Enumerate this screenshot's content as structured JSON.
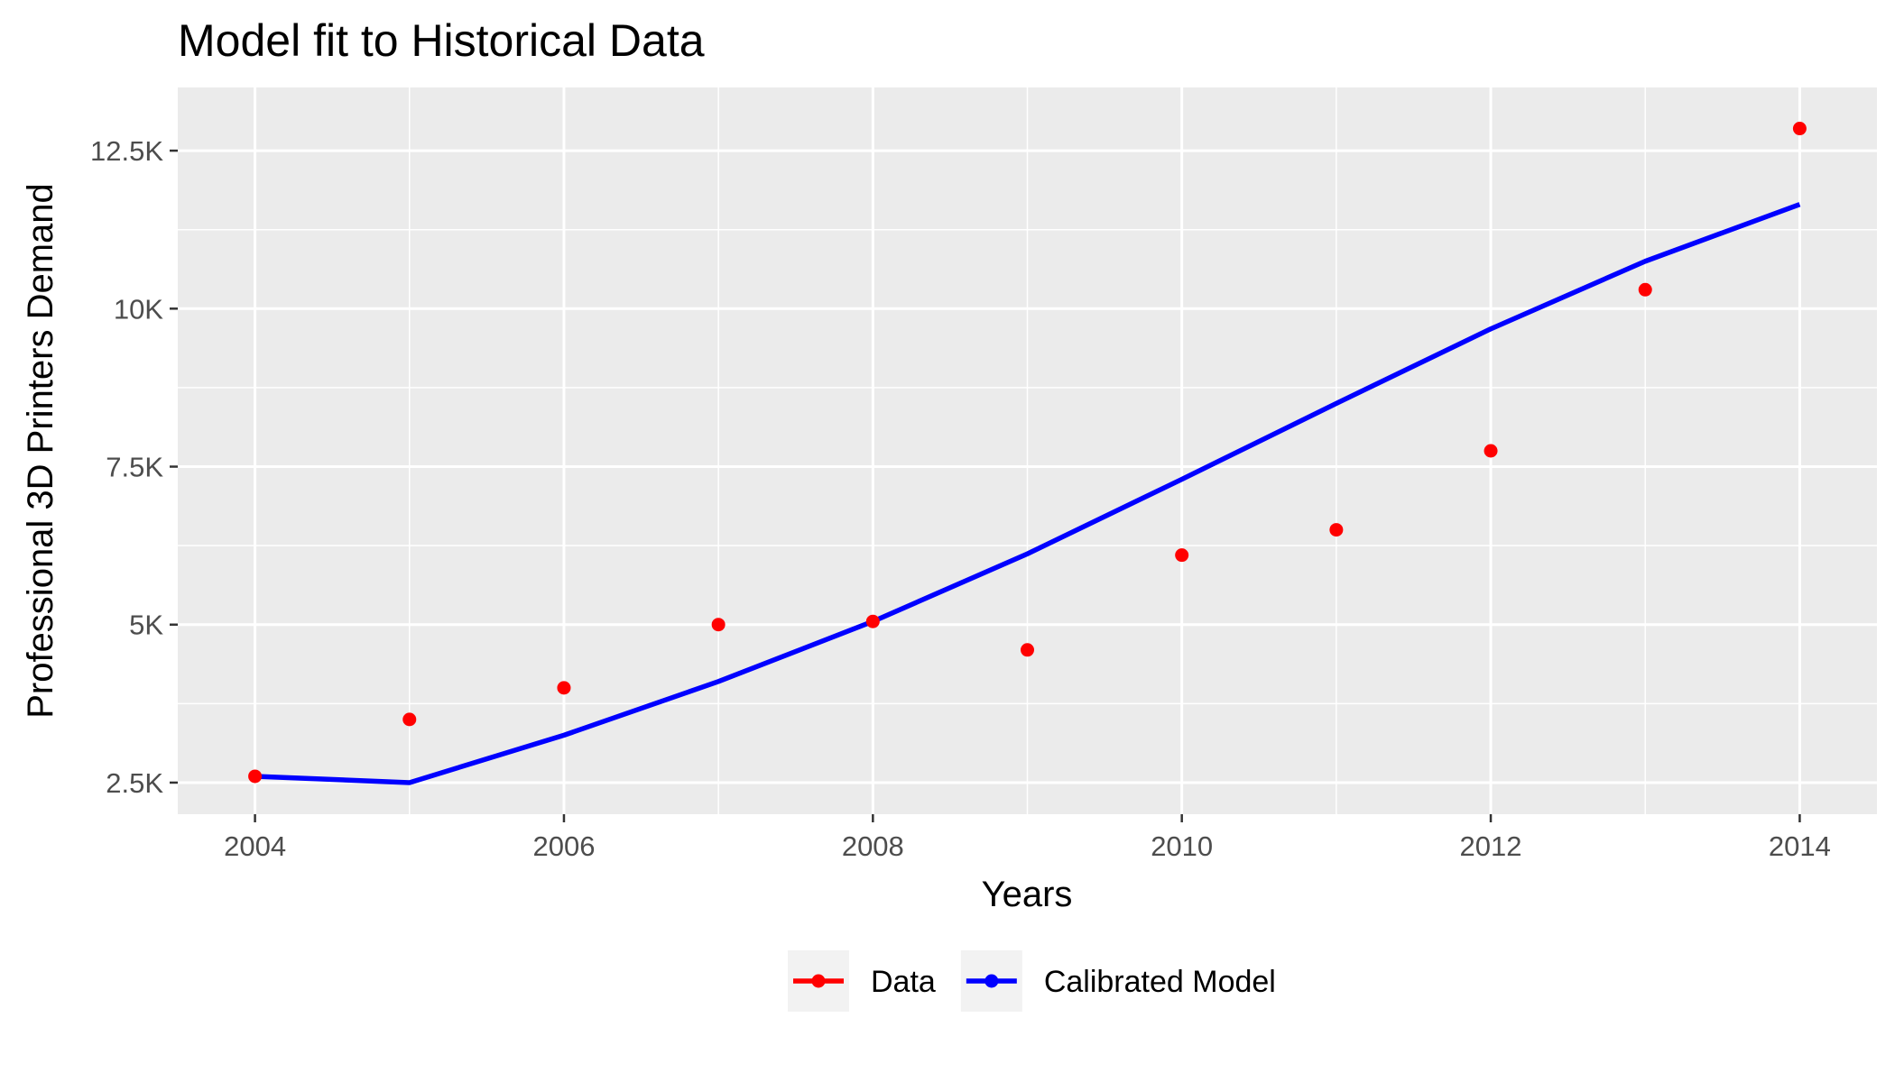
{
  "chart_data": {
    "type": "line",
    "title": "Model fit to Historical Data",
    "xlabel": "Years",
    "ylabel": "Professional 3D Printers Demand",
    "xlim": [
      2003.5,
      2014.5
    ],
    "ylim": [
      2000,
      13500
    ],
    "x_ticks": [
      2004,
      2006,
      2008,
      2010,
      2012,
      2014
    ],
    "x_tick_labels": [
      "2004",
      "2006",
      "2008",
      "2010",
      "2012",
      "2014"
    ],
    "y_ticks": [
      2500,
      5000,
      7500,
      10000,
      12500
    ],
    "y_tick_labels": [
      "2.5K",
      "5K",
      "7.5K",
      "10K",
      "12.5K"
    ],
    "grid": true,
    "legend_position": "bottom",
    "x": [
      2004,
      2005,
      2006,
      2007,
      2008,
      2009,
      2010,
      2011,
      2012,
      2013,
      2014
    ],
    "series": [
      {
        "name": "Data",
        "kind": "points",
        "color": "#ff0000",
        "values": [
          2600,
          3500,
          4000,
          5000,
          5050,
          4600,
          6100,
          6500,
          7750,
          10300,
          12850
        ]
      },
      {
        "name": "Calibrated Model",
        "kind": "line",
        "color": "#0000ff",
        "values": [
          2600,
          2500,
          3250,
          4100,
          5050,
          6120,
          7300,
          8500,
          9680,
          10750,
          11650
        ]
      }
    ]
  }
}
